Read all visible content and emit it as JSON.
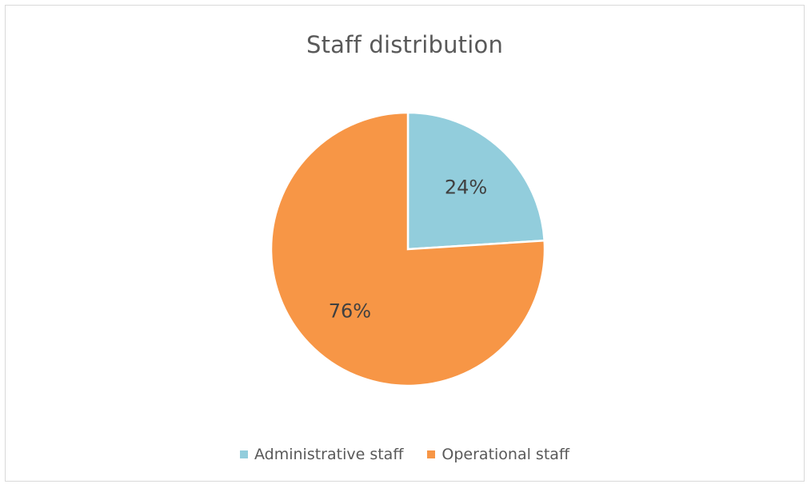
{
  "chart_data": {
    "type": "pie",
    "title": "Staff distribution",
    "categories": [
      "Administrative staff",
      "Operational staff"
    ],
    "values": [
      24,
      76
    ],
    "data_labels": [
      "24%",
      "76%"
    ],
    "colors": [
      "#92cddc",
      "#f79646"
    ],
    "legend_position": "bottom"
  }
}
